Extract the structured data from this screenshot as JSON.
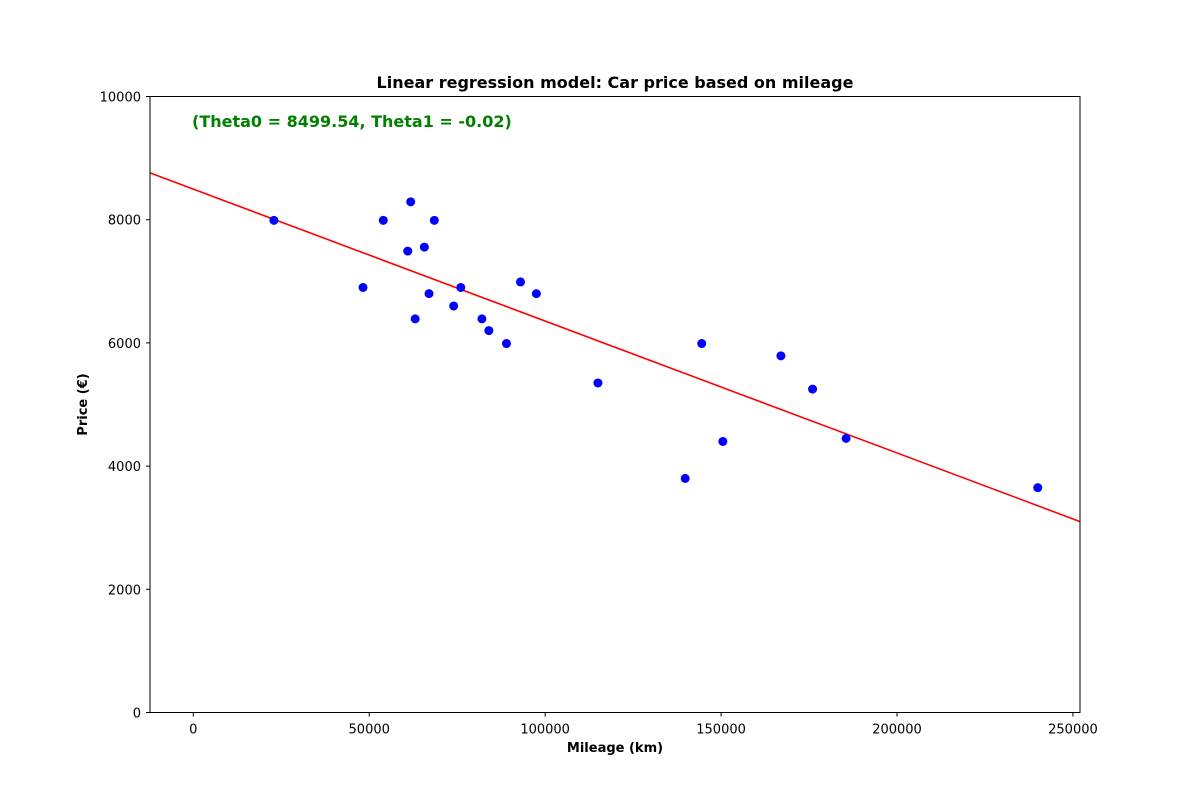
{
  "chart_data": {
    "type": "scatter",
    "title": "Linear regression model: Car price based on mileage",
    "xlabel": "Mileage (km)",
    "ylabel": "Price (€)",
    "xlim": [
      -12300,
      252000
    ],
    "ylim": [
      0,
      10000
    ],
    "xticks": [
      0,
      50000,
      100000,
      150000,
      200000,
      250000
    ],
    "yticks": [
      0,
      2000,
      4000,
      6000,
      8000,
      10000
    ],
    "grid": false,
    "annotation": "(Theta0 = 8499.54, Theta1 = -0.02)",
    "series": [
      {
        "type": "scatter",
        "color": "#0000ff",
        "points": [
          [
            22899,
            7990
          ],
          [
            48235,
            6900
          ],
          [
            54000,
            7990
          ],
          [
            61789,
            8290
          ],
          [
            60949,
            7490
          ],
          [
            65674,
            7555
          ],
          [
            68500,
            7990
          ],
          [
            76025,
            6900
          ],
          [
            67000,
            6800
          ],
          [
            74000,
            6600
          ],
          [
            63060,
            6390
          ],
          [
            82029,
            6390
          ],
          [
            84000,
            6200
          ],
          [
            89000,
            5990
          ],
          [
            93000,
            6990
          ],
          [
            97500,
            6800
          ],
          [
            115000,
            5350
          ],
          [
            139800,
            3800
          ],
          [
            144500,
            5990
          ],
          [
            150500,
            4400
          ],
          [
            167000,
            5790
          ],
          [
            176000,
            5250
          ],
          [
            185530,
            4450
          ],
          [
            240000,
            3650
          ]
        ]
      },
      {
        "type": "line",
        "color": "#ff0000",
        "x": [
          -12300,
          252000
        ],
        "y": [
          8760.2,
          3099.5
        ]
      }
    ]
  }
}
